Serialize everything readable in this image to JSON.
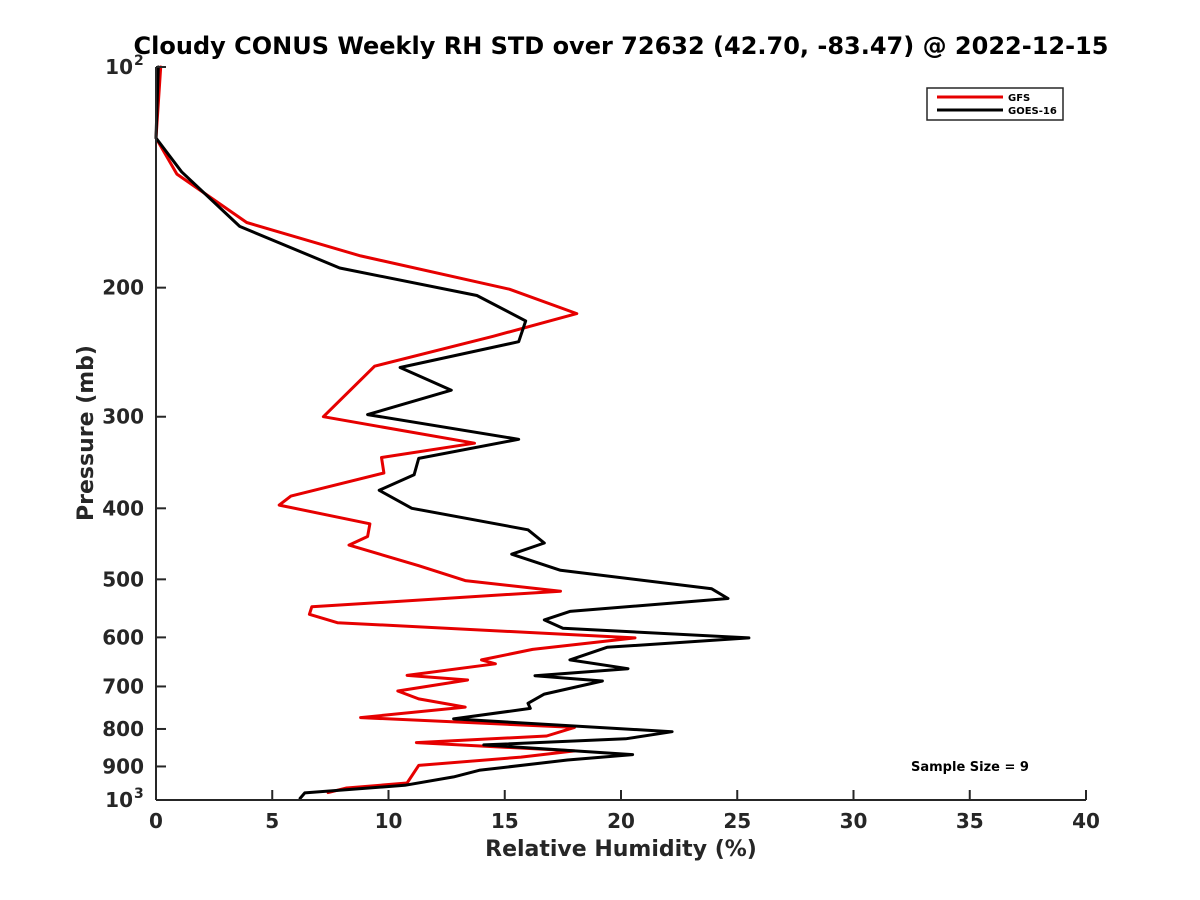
{
  "chart_data": {
    "type": "line",
    "title": "Cloudy CONUS Weekly RH STD over 72632 (42.70, -83.47) @ 2022-12-15",
    "xlabel": "Relative Humidity (%)",
    "ylabel": "Pressure (mb)",
    "xlim": [
      0,
      40
    ],
    "ylim": [
      100,
      1000
    ],
    "yscale": "log",
    "yreversed": true,
    "grid": false,
    "legend_position": "top-right",
    "x_ticks": [
      "0",
      "5",
      "10",
      "15",
      "20",
      "25",
      "30",
      "35",
      "40"
    ],
    "y_ticks": [
      {
        "value": 100,
        "label": "10",
        "sup": "2"
      },
      {
        "value": 200,
        "label": "200",
        "sup": ""
      },
      {
        "value": 300,
        "label": "300",
        "sup": ""
      },
      {
        "value": 400,
        "label": "400",
        "sup": ""
      },
      {
        "value": 500,
        "label": "500",
        "sup": ""
      },
      {
        "value": 600,
        "label": "600",
        "sup": ""
      },
      {
        "value": 700,
        "label": "700",
        "sup": ""
      },
      {
        "value": 800,
        "label": "800",
        "sup": ""
      },
      {
        "value": 900,
        "label": "900",
        "sup": ""
      },
      {
        "value": 1000,
        "label": "10",
        "sup": "3"
      }
    ],
    "annotation": "Sample Size = 9",
    "series": [
      {
        "name": "GFS",
        "color": "#e60000",
        "points": [
          [
            0.2,
            100
          ],
          [
            0.0,
            125
          ],
          [
            0.9,
            140
          ],
          [
            3.9,
            163
          ],
          [
            8.8,
            181
          ],
          [
            15.2,
            201
          ],
          [
            18.1,
            217
          ],
          [
            14.5,
            233
          ],
          [
            9.4,
            256
          ],
          [
            7.2,
            300
          ],
          [
            13.7,
            326
          ],
          [
            9.7,
            341
          ],
          [
            9.8,
            358
          ],
          [
            5.8,
            385
          ],
          [
            5.3,
            396
          ],
          [
            9.2,
            420
          ],
          [
            9.1,
            437
          ],
          [
            8.3,
            449
          ],
          [
            11.3,
            479
          ],
          [
            13.3,
            502
          ],
          [
            17.4,
            519
          ],
          [
            6.7,
            545
          ],
          [
            6.6,
            558
          ],
          [
            7.8,
            573
          ],
          [
            20.6,
            601
          ],
          [
            16.2,
            623
          ],
          [
            14.0,
            644
          ],
          [
            14.6,
            652
          ],
          [
            10.8,
            676
          ],
          [
            13.4,
            686
          ],
          [
            10.4,
            710
          ],
          [
            11.3,
            728
          ],
          [
            13.3,
            747
          ],
          [
            8.8,
            772
          ],
          [
            18.0,
            796
          ],
          [
            16.8,
            818
          ],
          [
            11.2,
            835
          ],
          [
            18.0,
            857
          ],
          [
            15.7,
            874
          ],
          [
            11.3,
            897
          ],
          [
            10.8,
            948
          ],
          [
            8.2,
            963
          ],
          [
            7.4,
            977
          ]
        ]
      },
      {
        "name": "GOES-16",
        "color": "#000000",
        "points": [
          [
            0.1,
            100
          ],
          [
            0.0,
            125
          ],
          [
            1.1,
            139
          ],
          [
            3.6,
            165
          ],
          [
            7.9,
            188
          ],
          [
            13.8,
            205
          ],
          [
            15.9,
            222
          ],
          [
            15.6,
            237
          ],
          [
            10.5,
            257
          ],
          [
            12.7,
            276
          ],
          [
            9.1,
            298
          ],
          [
            15.6,
            322
          ],
          [
            11.3,
            342
          ],
          [
            11.1,
            360
          ],
          [
            9.6,
            378
          ],
          [
            11.0,
            400
          ],
          [
            16.0,
            428
          ],
          [
            16.7,
            446
          ],
          [
            15.3,
            462
          ],
          [
            17.4,
            486
          ],
          [
            23.9,
            515
          ],
          [
            24.6,
            531
          ],
          [
            17.8,
            553
          ],
          [
            16.7,
            568
          ],
          [
            17.5,
            583
          ],
          [
            25.5,
            601
          ],
          [
            19.4,
            619
          ],
          [
            17.8,
            644
          ],
          [
            20.3,
            662
          ],
          [
            16.3,
            677
          ],
          [
            19.2,
            688
          ],
          [
            16.7,
            717
          ],
          [
            16.0,
            738
          ],
          [
            16.1,
            750
          ],
          [
            12.8,
            775
          ],
          [
            22.2,
            807
          ],
          [
            20.2,
            825
          ],
          [
            14.1,
            841
          ],
          [
            20.5,
            867
          ],
          [
            17.7,
            882
          ],
          [
            13.9,
            911
          ],
          [
            12.8,
            930
          ],
          [
            10.7,
            955
          ],
          [
            6.4,
            978
          ],
          [
            6.2,
            995
          ]
        ]
      }
    ]
  }
}
